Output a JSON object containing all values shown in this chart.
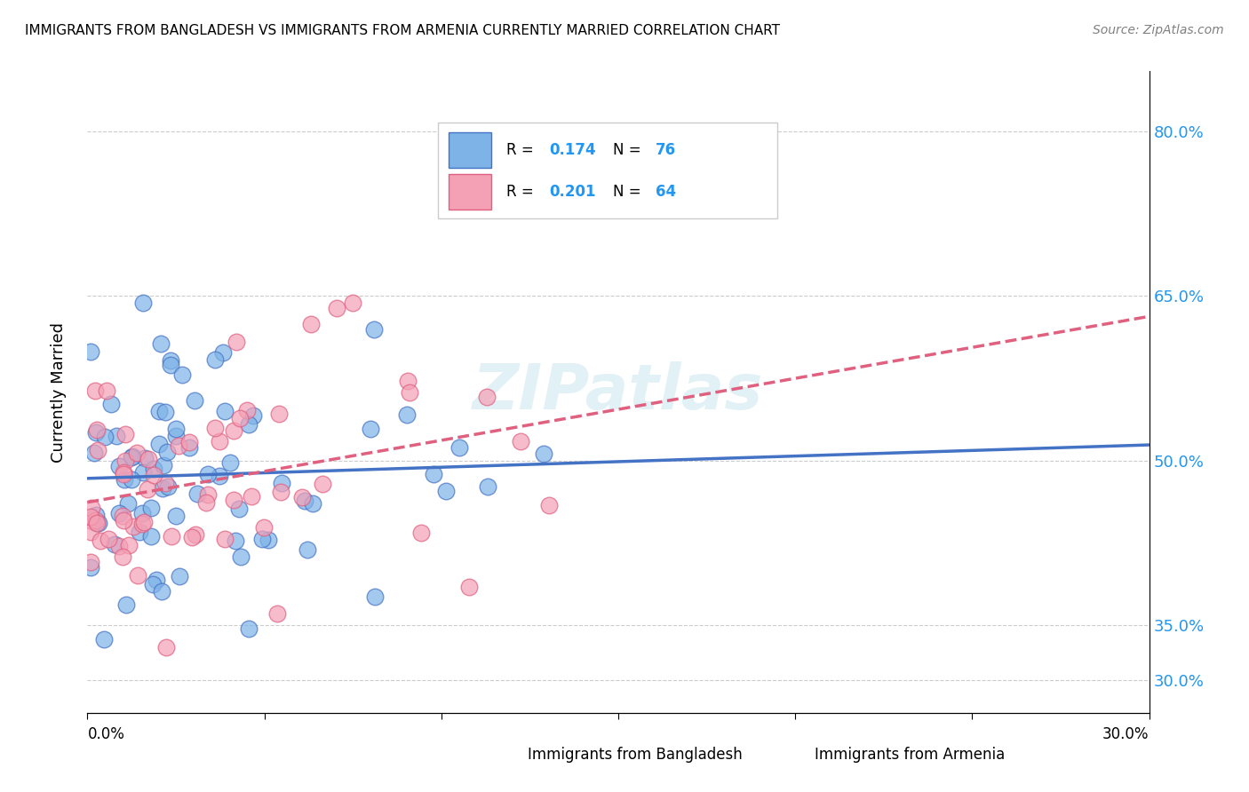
{
  "title": "IMMIGRANTS FROM BANGLADESH VS IMMIGRANTS FROM ARMENIA CURRENTLY MARRIED CORRELATION CHART",
  "source": "Source: ZipAtlas.com",
  "ylabel": "Currently Married",
  "color_bangladesh": "#7EB3E8",
  "color_armenia": "#F4A0B5",
  "line_color_bangladesh": "#4472C4",
  "line_color_armenia": "#E06080",
  "R_bangladesh": 0.174,
  "N_bangladesh": 76,
  "R_armenia": 0.201,
  "N_armenia": 64,
  "watermark": "ZIPatlas",
  "xlim": [
    0.0,
    0.3
  ],
  "ylim": [
    0.27,
    0.855
  ],
  "ytick_vals": [
    0.3,
    0.35,
    0.5,
    0.65,
    0.8
  ],
  "ytick_labels": [
    "30.0%",
    "35.0%",
    "50.0%",
    "65.0%",
    "80.0%"
  ]
}
